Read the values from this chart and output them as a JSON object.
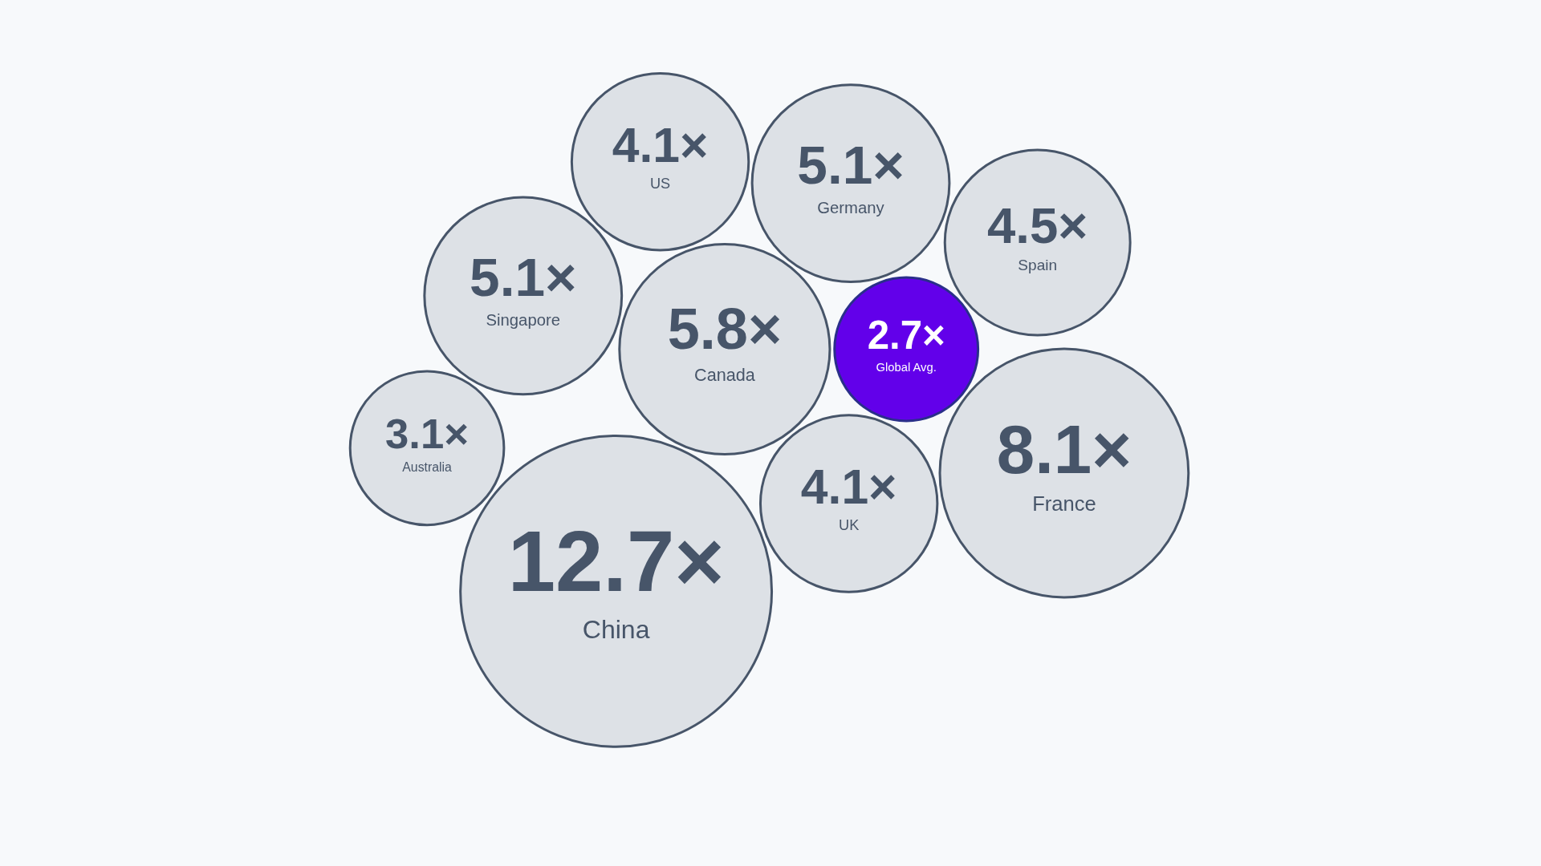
{
  "chart_data": {
    "type": "other",
    "categories": [
      "Canada",
      "Global Avg.",
      "UK",
      "Germany",
      "China",
      "US",
      "France",
      "Spain",
      "Singapore",
      "Australia"
    ],
    "values": [
      5.8,
      2.7,
      4.1,
      5.1,
      12.7,
      4.1,
      8.1,
      4.5,
      5.1,
      3.1
    ],
    "value_labels": [
      "5.8×",
      "2.7×",
      "4.1×",
      "5.1×",
      "12.7×",
      "4.1×",
      "8.1×",
      "4.5×",
      "5.1×",
      "3.1×"
    ],
    "colors": [
      "#dde1e6",
      "#6200ea",
      "#dde1e6",
      "#dde1e6",
      "#dde1e6",
      "#dde1e6",
      "#dde1e6",
      "#dde1e6",
      "#dde1e6",
      "#dde1e6"
    ]
  }
}
